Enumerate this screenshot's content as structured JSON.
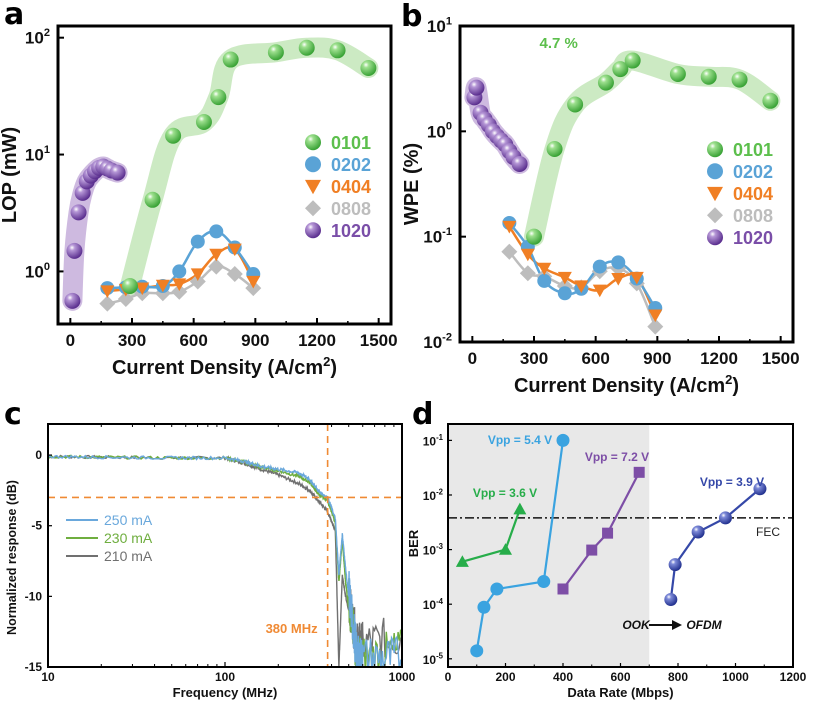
{
  "colors": {
    "green": "#5cbf4c",
    "green_band": "#c7e8bd",
    "blue": "#5aa3d6",
    "orange": "#f07f24",
    "gray": "#bdbdbd",
    "purple": "#7a4ea8",
    "purple_band": "#c9b3dd",
    "annot_orange": "#f08a34",
    "d_green": "#27ad4a",
    "d_lightblue": "#3aa3e0",
    "d_purple": "#7d4ea6",
    "d_navy": "#3548a8",
    "d_shade": "#e8e8e8"
  },
  "chart_data": [
    {
      "panel": "a",
      "type": "scatter",
      "title": "",
      "xlabel": "Current Density (A/cm2)",
      "ylabel": "LOP (mW)",
      "xlim": [
        -60,
        1560
      ],
      "ylim_log10": [
        -0.45,
        2.1
      ],
      "yscale": "log",
      "xticks": [
        0,
        300,
        600,
        900,
        1200,
        1500
      ],
      "yticks": [
        {
          "v": 1,
          "label": "10",
          "exp": "0"
        },
        {
          "v": 10,
          "label": "10",
          "exp": "1"
        },
        {
          "v": 100,
          "label": "10",
          "exp": "2"
        }
      ],
      "legend": {
        "position": "right",
        "entries": [
          "0101",
          "0202",
          "0404",
          "0808",
          "1020"
        ]
      },
      "series": [
        {
          "name": "0101",
          "marker": "sphere",
          "color_key": "green",
          "band_key": "green_band",
          "x": [
            290,
            400,
            500,
            650,
            720,
            780,
            1000,
            1150,
            1300,
            1450
          ],
          "y": [
            0.75,
            4.1,
            14.5,
            19,
            31,
            65,
            75,
            82,
            78,
            55
          ]
        },
        {
          "name": "0202",
          "marker": "circle",
          "color_key": "blue",
          "x": [
            180,
            270,
            350,
            450,
            530,
            620,
            710,
            800,
            890
          ],
          "y": [
            0.72,
            0.73,
            0.74,
            0.75,
            1.0,
            1.8,
            2.2,
            1.6,
            0.95
          ]
        },
        {
          "name": "0404",
          "marker": "triangle-down",
          "color_key": "orange",
          "x": [
            180,
            270,
            350,
            450,
            530,
            620,
            710,
            800,
            890
          ],
          "y": [
            0.68,
            0.7,
            0.72,
            0.76,
            0.78,
            0.95,
            1.4,
            1.55,
            0.82
          ]
        },
        {
          "name": "0808",
          "marker": "diamond",
          "color_key": "gray",
          "x": [
            180,
            270,
            350,
            450,
            530,
            620,
            710,
            800,
            890
          ],
          "y": [
            0.53,
            0.58,
            0.65,
            0.65,
            0.67,
            0.82,
            1.1,
            0.95,
            0.72
          ]
        },
        {
          "name": "1020",
          "marker": "sphere",
          "color_key": "purple",
          "band_key": "purple_band",
          "x": [
            10,
            20,
            40,
            60,
            80,
            100,
            120,
            140,
            160,
            180,
            200,
            230
          ],
          "y": [
            0.56,
            1.5,
            3.2,
            4.7,
            5.9,
            6.6,
            7.2,
            7.7,
            7.9,
            7.6,
            7.3,
            7.0
          ]
        }
      ]
    },
    {
      "panel": "b",
      "type": "scatter",
      "title": "",
      "xlabel": "Current Density (A/cm2)",
      "ylabel": "WPE (%)",
      "xlim": [
        -60,
        1560
      ],
      "ylim_log10": [
        -2,
        1
      ],
      "yscale": "log",
      "xticks": [
        0,
        300,
        600,
        900,
        1200,
        1500
      ],
      "yticks": [
        {
          "v": 0.01,
          "label": "10",
          "exp": "-2"
        },
        {
          "v": 0.1,
          "label": "10",
          "exp": "-1"
        },
        {
          "v": 1,
          "label": "10",
          "exp": "0"
        },
        {
          "v": 10,
          "label": "10",
          "exp": "1"
        }
      ],
      "annotation": "4.7 %",
      "legend": {
        "position": "right",
        "entries": [
          "0101",
          "0202",
          "0404",
          "0808",
          "1020"
        ]
      },
      "series": [
        {
          "name": "0101",
          "marker": "sphere",
          "color_key": "green",
          "band_key": "green_band",
          "x": [
            300,
            400,
            500,
            650,
            720,
            780,
            1000,
            1150,
            1300,
            1450
          ],
          "y": [
            0.1,
            0.68,
            1.8,
            2.9,
            3.9,
            4.7,
            3.5,
            3.3,
            3.1,
            1.95
          ]
        },
        {
          "name": "0202",
          "marker": "circle",
          "color_key": "blue",
          "x": [
            180,
            270,
            350,
            450,
            530,
            620,
            710,
            800,
            890
          ],
          "y": [
            0.135,
            0.08,
            0.038,
            0.029,
            0.032,
            0.052,
            0.057,
            0.04,
            0.021
          ]
        },
        {
          "name": "0404",
          "marker": "triangle-down",
          "color_key": "orange",
          "x": [
            180,
            270,
            350,
            450,
            530,
            620,
            710,
            800,
            890
          ],
          "y": [
            0.125,
            0.068,
            0.05,
            0.041,
            0.034,
            0.031,
            0.04,
            0.041,
            0.018
          ]
        },
        {
          "name": "0808",
          "marker": "diamond",
          "color_key": "gray",
          "x": [
            180,
            270,
            350,
            450,
            530,
            620,
            710,
            800,
            890
          ],
          "y": [
            0.072,
            0.045,
            0.042,
            0.034,
            0.033,
            0.047,
            0.05,
            0.036,
            0.014
          ]
        },
        {
          "name": "1020",
          "marker": "sphere",
          "color_key": "purple",
          "band_key": "purple_band",
          "x": [
            10,
            20,
            40,
            60,
            80,
            100,
            120,
            140,
            160,
            180,
            200,
            230
          ],
          "y": [
            2.1,
            2.6,
            1.5,
            1.3,
            1.15,
            1.0,
            0.9,
            0.82,
            0.75,
            0.65,
            0.57,
            0.49
          ]
        }
      ]
    },
    {
      "panel": "c",
      "type": "line",
      "title": "",
      "xlabel": "Frequency (MHz)",
      "ylabel": "Normalized response (dB)",
      "xscale": "log",
      "xlim": [
        10,
        1000
      ],
      "ylim": [
        -15,
        2.2
      ],
      "xticks": [
        10,
        100,
        1000
      ],
      "yticks": [
        0,
        -5,
        -10,
        -15
      ],
      "reference_lines": {
        "h_db": -3,
        "v_mhz": 380
      },
      "annotation": "380 MHz",
      "legend": {
        "position": "left",
        "entries": [
          "250 mA",
          "230 mA",
          "210 mA"
        ]
      },
      "series": [
        {
          "name": "250 mA",
          "color": "#6aa8dc",
          "x": [
            10,
            20,
            50,
            100,
            130,
            160,
            200,
            260,
            300,
            340,
            380,
            420,
            440,
            460,
            480,
            520,
            560,
            600,
            1000
          ],
          "y": [
            -0.1,
            -0.15,
            -0.2,
            -0.2,
            -0.45,
            -0.8,
            -1.0,
            -1.25,
            -1.7,
            -2.6,
            -3.0,
            -4.5,
            -8.5,
            -5.6,
            -8.0,
            -12.0,
            -15.0,
            -15.0,
            -15.0
          ]
        },
        {
          "name": "230 mA",
          "color": "#6fae3f",
          "x": [
            10,
            20,
            50,
            100,
            130,
            160,
            200,
            260,
            300,
            340,
            380,
            420,
            440,
            460,
            480,
            520,
            560,
            600,
            1000
          ],
          "y": [
            -0.1,
            -0.15,
            -0.2,
            -0.2,
            -0.5,
            -0.85,
            -1.1,
            -1.5,
            -1.9,
            -2.8,
            -3.2,
            -4.8,
            -9.0,
            -6.0,
            -9.0,
            -12.5,
            -15.0,
            -15.0,
            -14.5
          ]
        },
        {
          "name": "210 mA",
          "color": "#707070",
          "x": [
            10,
            20,
            50,
            100,
            130,
            160,
            200,
            260,
            300,
            340,
            380,
            420,
            440,
            460,
            480,
            520,
            560,
            600,
            1000
          ],
          "y": [
            -0.1,
            -0.15,
            -0.2,
            -0.2,
            -0.6,
            -1.0,
            -1.4,
            -2.0,
            -2.5,
            -3.3,
            -4.0,
            -5.3,
            -15.0,
            -8.5,
            -10.0,
            -12.0,
            -14.0,
            -14.0,
            -13.5
          ]
        }
      ]
    },
    {
      "panel": "d",
      "type": "line",
      "title": "",
      "xlabel": "Data Rate (Mbps)",
      "ylabel": "BER",
      "xlim": [
        0,
        1200
      ],
      "ylim_log10": [
        -5.15,
        -0.7
      ],
      "yscale": "log",
      "xticks": [
        0,
        200,
        400,
        600,
        800,
        1000,
        1200
      ],
      "yticks": [
        {
          "v": 1e-05,
          "label": "10",
          "exp": "-5"
        },
        {
          "v": 0.0001,
          "label": "10",
          "exp": "-4"
        },
        {
          "v": 0.001,
          "label": "10",
          "exp": "-3"
        },
        {
          "v": 0.01,
          "label": "10",
          "exp": "-2"
        },
        {
          "v": 0.1,
          "label": "10",
          "exp": "-1"
        }
      ],
      "shaded_region_x": [
        0,
        700
      ],
      "fec_threshold": 0.0038,
      "fec_label": "FEC",
      "modulation_label": {
        "from": "OOK",
        "to": "OFDM"
      },
      "series": [
        {
          "name": "Vpp = 3.6 V",
          "marker": "triangle-up",
          "color_key": "d_green",
          "x": [
            50,
            200,
            250
          ],
          "y": [
            0.0006,
            0.001,
            0.0055
          ]
        },
        {
          "name": "Vpp = 5.4 V",
          "marker": "circle",
          "color_key": "d_lightblue",
          "x": [
            100,
            125,
            170,
            333,
            400
          ],
          "y": [
            1.4e-05,
            8.8e-05,
            0.00019,
            0.00026,
            0.1
          ]
        },
        {
          "name": "Vpp = 7.2 V",
          "marker": "square",
          "color_key": "d_purple",
          "x": [
            400,
            500,
            555,
            665
          ],
          "y": [
            0.00019,
            0.00098,
            0.002,
            0.026
          ]
        },
        {
          "name": "Vpp = 3.9 V",
          "marker": "sphere",
          "color_key": "d_navy",
          "x": [
            775,
            790,
            870,
            965,
            1085
          ],
          "y": [
            0.000122,
            0.00053,
            0.0021,
            0.0038,
            0.013
          ]
        }
      ]
    }
  ],
  "panels": {
    "a": {
      "letter": "a"
    },
    "b": {
      "letter": "b"
    },
    "c": {
      "letter": "c"
    },
    "d": {
      "letter": "d"
    }
  }
}
